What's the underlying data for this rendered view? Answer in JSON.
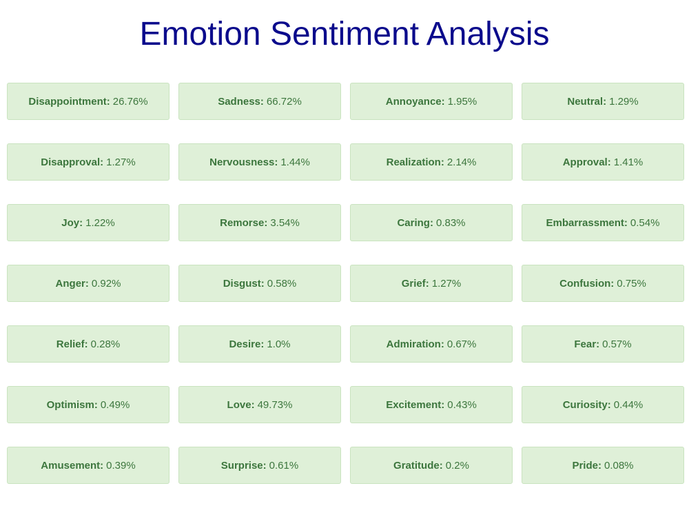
{
  "title": "Emotion Sentiment Analysis",
  "theme": {
    "title_color": "#0b0b8c",
    "card_background": "#dff0d8",
    "card_border": "#c9e3bf",
    "card_text": "#3c763d"
  },
  "emotions": [
    {
      "label": "Disappointment",
      "value": "26.76%"
    },
    {
      "label": "Sadness",
      "value": "66.72%"
    },
    {
      "label": "Annoyance",
      "value": "1.95%"
    },
    {
      "label": "Neutral",
      "value": "1.29%"
    },
    {
      "label": "Disapproval",
      "value": "1.27%"
    },
    {
      "label": "Nervousness",
      "value": "1.44%"
    },
    {
      "label": "Realization",
      "value": "2.14%"
    },
    {
      "label": "Approval",
      "value": "1.41%"
    },
    {
      "label": "Joy",
      "value": "1.22%"
    },
    {
      "label": "Remorse",
      "value": "3.54%"
    },
    {
      "label": "Caring",
      "value": "0.83%"
    },
    {
      "label": "Embarrassment",
      "value": "0.54%"
    },
    {
      "label": "Anger",
      "value": "0.92%"
    },
    {
      "label": "Disgust",
      "value": "0.58%"
    },
    {
      "label": "Grief",
      "value": "1.27%"
    },
    {
      "label": "Confusion",
      "value": "0.75%"
    },
    {
      "label": "Relief",
      "value": "0.28%"
    },
    {
      "label": "Desire",
      "value": "1.0%"
    },
    {
      "label": "Admiration",
      "value": "0.67%"
    },
    {
      "label": "Fear",
      "value": "0.57%"
    },
    {
      "label": "Optimism",
      "value": "0.49%"
    },
    {
      "label": "Love",
      "value": "49.73%"
    },
    {
      "label": "Excitement",
      "value": "0.43%"
    },
    {
      "label": "Curiosity",
      "value": "0.44%"
    },
    {
      "label": "Amusement",
      "value": "0.39%"
    },
    {
      "label": "Surprise",
      "value": "0.61%"
    },
    {
      "label": "Gratitude",
      "value": "0.2%"
    },
    {
      "label": "Pride",
      "value": "0.08%"
    }
  ]
}
